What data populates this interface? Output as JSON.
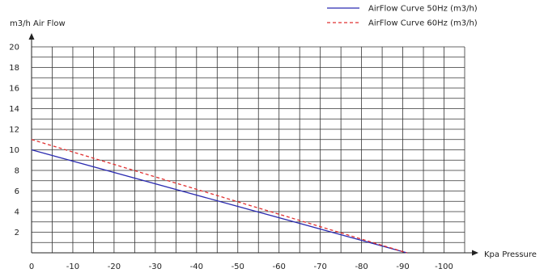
{
  "chart_data": {
    "type": "line",
    "title": "",
    "xlabel": "Kpa  Pressure",
    "ylabel": "m3/h  Air Flow",
    "xlim": [
      0,
      -105
    ],
    "ylim": [
      0,
      20
    ],
    "x_ticks": [
      0,
      -10,
      -20,
      -30,
      -40,
      -50,
      -60,
      -70,
      -80,
      -90,
      -100
    ],
    "x_tick_labels": [
      "0",
      "-10",
      "-20",
      "-30",
      "-40",
      "-50",
      "-60",
      "-70",
      "-80",
      "-90",
      "-100"
    ],
    "y_ticks": [
      2,
      4,
      6,
      8,
      10,
      12,
      14,
      16,
      18,
      20
    ],
    "y_tick_labels": [
      "2",
      "4",
      "6",
      "8",
      "10",
      "12",
      "14",
      "16",
      "18",
      "20"
    ],
    "grid": true,
    "legend_position": "top-right",
    "series": [
      {
        "name": "AirFlow Curve 50Hz (m3/h)",
        "color": "#2b2bb0",
        "style": "solid",
        "x": [
          0,
          -91
        ],
        "y": [
          10,
          0
        ]
      },
      {
        "name": "AirFlow Curve 60Hz (m3/h)",
        "color": "#e03030",
        "style": "dashed",
        "x": [
          0,
          -91
        ],
        "y": [
          11,
          0
        ]
      }
    ]
  }
}
